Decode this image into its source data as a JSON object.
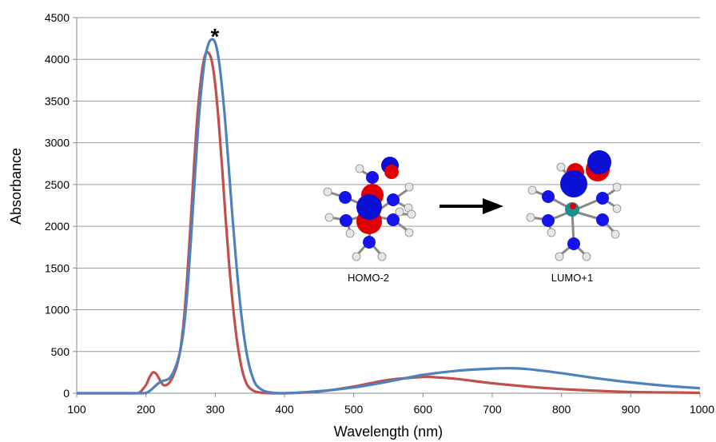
{
  "chart_data": {
    "type": "line",
    "title": "",
    "xlabel": "Wavelength (nm)",
    "ylabel": "Absorbance",
    "xlim": [
      100,
      1000
    ],
    "ylim": [
      0,
      4500
    ],
    "xticks": [
      100,
      200,
      300,
      400,
      500,
      600,
      700,
      800,
      900,
      1000
    ],
    "yticks": [
      0,
      500,
      1000,
      1500,
      2000,
      2500,
      3000,
      3500,
      4000,
      4500
    ],
    "grid": "horizontal",
    "legend": "none",
    "series": [
      {
        "color": "#c0504d",
        "x": [
          100,
          180,
          190,
          200,
          205,
          210,
          215,
          220,
          225,
          230,
          235,
          240,
          245,
          250,
          255,
          260,
          265,
          270,
          275,
          280,
          285,
          290,
          295,
          300,
          305,
          310,
          315,
          320,
          325,
          330,
          335,
          340,
          345,
          350,
          360,
          380,
          400,
          450,
          500,
          550,
          600,
          620,
          650,
          700,
          750,
          800,
          850,
          900,
          950,
          1000
        ],
        "y": [
          0,
          0,
          5,
          100,
          190,
          250,
          230,
          160,
          100,
          100,
          140,
          220,
          340,
          540,
          900,
          1450,
          2100,
          2800,
          3400,
          3800,
          4040,
          4080,
          3980,
          3700,
          3250,
          2700,
          2100,
          1550,
          1100,
          720,
          440,
          240,
          120,
          60,
          15,
          0,
          0,
          20,
          80,
          160,
          195,
          190,
          170,
          120,
          80,
          50,
          30,
          15,
          10,
          5
        ]
      },
      {
        "color": "#4f81bd",
        "x": [
          100,
          190,
          200,
          205,
          210,
          215,
          220,
          225,
          230,
          235,
          240,
          245,
          250,
          255,
          260,
          265,
          270,
          275,
          280,
          285,
          290,
          295,
          300,
          305,
          310,
          315,
          320,
          325,
          330,
          335,
          340,
          345,
          350,
          355,
          360,
          370,
          380,
          400,
          450,
          500,
          550,
          600,
          650,
          700,
          725,
          750,
          800,
          850,
          900,
          950,
          1000
        ],
        "y": [
          0,
          0,
          5,
          25,
          60,
          100,
          130,
          150,
          160,
          190,
          260,
          370,
          530,
          800,
          1250,
          1850,
          2500,
          3150,
          3650,
          4000,
          4180,
          4240,
          4200,
          4000,
          3650,
          3200,
          2650,
          2100,
          1600,
          1150,
          780,
          500,
          300,
          170,
          90,
          30,
          10,
          0,
          25,
          70,
          140,
          220,
          270,
          295,
          300,
          290,
          240,
          180,
          130,
          90,
          60
        ]
      }
    ],
    "annotations": {
      "peak_marker": "*",
      "homo_label": "HOMO-2",
      "lumo_label": "LUMO+1"
    }
  }
}
